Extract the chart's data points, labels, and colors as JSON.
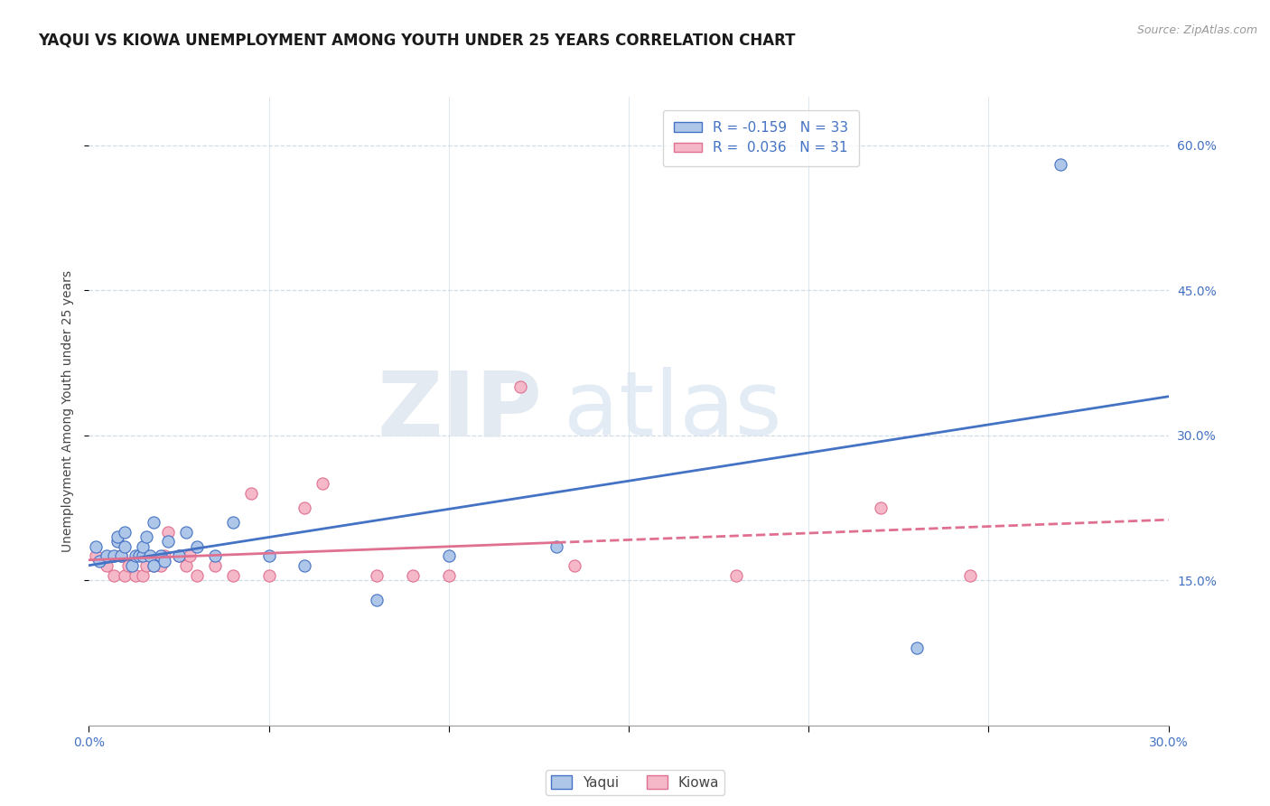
{
  "title": "YAQUI VS KIOWA UNEMPLOYMENT AMONG YOUTH UNDER 25 YEARS CORRELATION CHART",
  "source": "Source: ZipAtlas.com",
  "ylabel": "Unemployment Among Youth under 25 years",
  "xlim": [
    0.0,
    0.3
  ],
  "ylim": [
    0.0,
    0.65
  ],
  "xticks": [
    0.0,
    0.05,
    0.1,
    0.15,
    0.2,
    0.25,
    0.3
  ],
  "xtick_labels": [
    "0.0%",
    "",
    "",
    "",
    "",
    "",
    "30.0%"
  ],
  "ytick_positions": [
    0.15,
    0.3,
    0.45,
    0.6
  ],
  "right_ytick_labels": [
    "15.0%",
    "30.0%",
    "45.0%",
    "60.0%"
  ],
  "legend_r1": "R = -0.159",
  "legend_n1": "N = 33",
  "legend_r2": "R =  0.036",
  "legend_n2": "N = 31",
  "yaqui_color": "#aec6e8",
  "kiowa_color": "#f4b8c8",
  "yaqui_edge_color": "#4472c4",
  "kiowa_edge_color": "#e07090",
  "yaqui_line_color": "#4472c4",
  "kiowa_line_color": "#e07090",
  "watermark_zip": "ZIP",
  "watermark_atlas": "atlas",
  "grid_color": "#d0dce8",
  "background_color": "#ffffff",
  "yaqui_x": [
    0.002,
    0.003,
    0.005,
    0.007,
    0.008,
    0.008,
    0.009,
    0.01,
    0.01,
    0.012,
    0.013,
    0.014,
    0.015,
    0.015,
    0.016,
    0.017,
    0.018,
    0.018,
    0.02,
    0.021,
    0.022,
    0.025,
    0.027,
    0.03,
    0.035,
    0.04,
    0.05,
    0.06,
    0.08,
    0.1,
    0.13,
    0.23,
    0.27
  ],
  "yaqui_y": [
    0.185,
    0.17,
    0.175,
    0.175,
    0.19,
    0.195,
    0.175,
    0.185,
    0.2,
    0.165,
    0.175,
    0.175,
    0.175,
    0.185,
    0.195,
    0.175,
    0.165,
    0.21,
    0.175,
    0.17,
    0.19,
    0.175,
    0.2,
    0.185,
    0.175,
    0.21,
    0.175,
    0.165,
    0.13,
    0.175,
    0.185,
    0.08,
    0.58
  ],
  "kiowa_x": [
    0.002,
    0.005,
    0.007,
    0.009,
    0.01,
    0.011,
    0.013,
    0.015,
    0.016,
    0.018,
    0.02,
    0.021,
    0.022,
    0.025,
    0.027,
    0.028,
    0.03,
    0.035,
    0.04,
    0.045,
    0.05,
    0.06,
    0.065,
    0.08,
    0.09,
    0.1,
    0.12,
    0.135,
    0.18,
    0.22,
    0.245
  ],
  "kiowa_y": [
    0.175,
    0.165,
    0.155,
    0.175,
    0.155,
    0.165,
    0.155,
    0.155,
    0.165,
    0.165,
    0.165,
    0.175,
    0.2,
    0.175,
    0.165,
    0.175,
    0.155,
    0.165,
    0.155,
    0.24,
    0.155,
    0.225,
    0.25,
    0.155,
    0.155,
    0.155,
    0.35,
    0.165,
    0.155,
    0.225,
    0.155
  ],
  "title_fontsize": 12,
  "axis_label_fontsize": 10,
  "tick_fontsize": 10,
  "marker_size": 90
}
